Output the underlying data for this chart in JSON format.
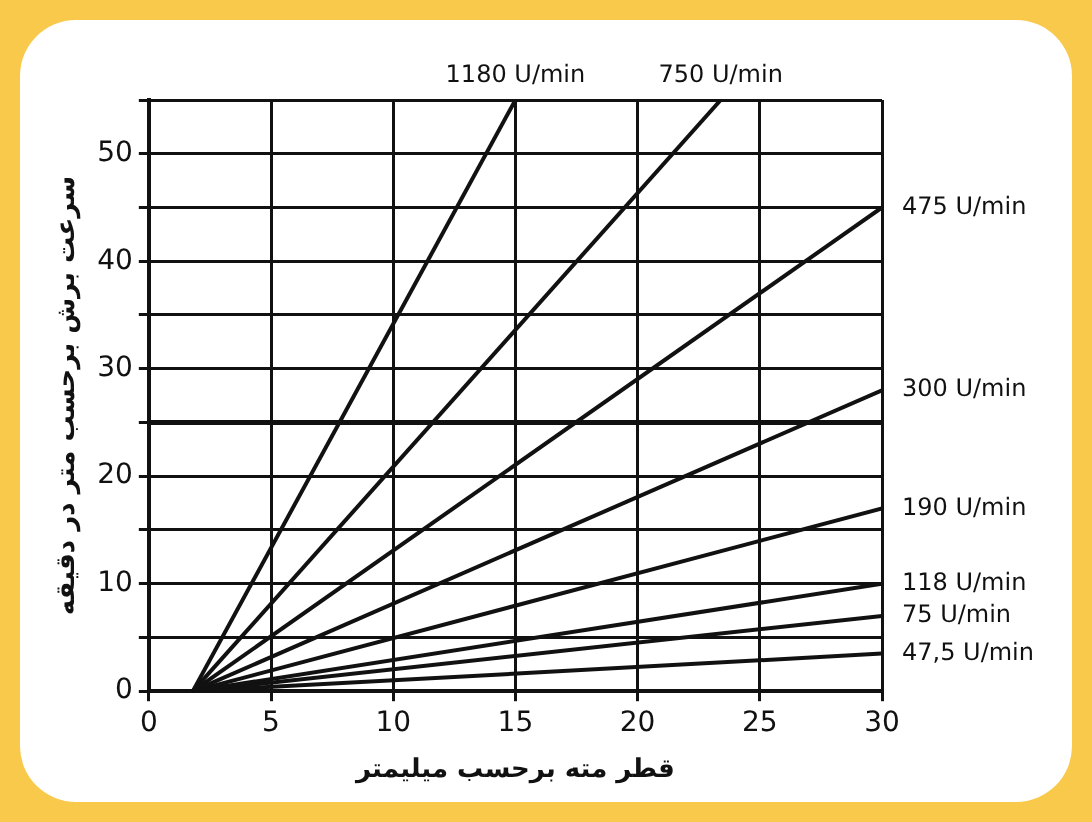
{
  "chart_data": {
    "type": "line",
    "xlabel": "قطر مته برحسب میلیمتر",
    "ylabel": "سرعت برش برحسب متر در دقیقه",
    "xlim": [
      0,
      30
    ],
    "xticks": [
      0,
      5,
      10,
      15,
      20,
      25,
      30
    ],
    "ylim": [
      0,
      55
    ],
    "yticks": [
      0,
      {
        "value": 5,
        "label": null
      },
      10,
      {
        "value": 15,
        "label": null
      },
      20,
      {
        "value": 25,
        "label": null
      },
      30,
      {
        "value": 35,
        "label": null
      },
      40,
      {
        "value": 45,
        "label": null
      },
      50,
      {
        "value": 55,
        "label": null
      }
    ],
    "grid": true,
    "legend": false,
    "marker": "none",
    "line_style": "solid",
    "ref_lines": [
      {
        "axis": "y",
        "value": 25,
        "color": "#111111"
      }
    ],
    "series": [
      {
        "name": "1180 U/min",
        "color": "#111111",
        "x": [
          1.8,
          15
        ],
        "values": [
          0,
          55
        ]
      },
      {
        "name": "750 U/min",
        "color": "#111111",
        "x": [
          1.8,
          23.4
        ],
        "values": [
          0,
          55
        ]
      },
      {
        "name": "475 U/min",
        "color": "#111111",
        "x": [
          1.8,
          30
        ],
        "values": [
          0,
          45
        ]
      },
      {
        "name": "300 U/min",
        "color": "#111111",
        "x": [
          1.8,
          30
        ],
        "values": [
          0,
          28
        ]
      },
      {
        "name": "190 U/min",
        "color": "#111111",
        "x": [
          1.8,
          30
        ],
        "values": [
          0,
          17
        ]
      },
      {
        "name": "118 U/min",
        "color": "#111111",
        "x": [
          1.8,
          30
        ],
        "values": [
          0,
          10
        ]
      },
      {
        "name": "75 U/min",
        "color": "#111111",
        "x": [
          1.8,
          30
        ],
        "values": [
          0,
          7
        ]
      },
      {
        "name": "47,5 U/min",
        "color": "#111111",
        "x": [
          1.8,
          30
        ],
        "values": [
          0,
          3.5
        ]
      }
    ]
  }
}
